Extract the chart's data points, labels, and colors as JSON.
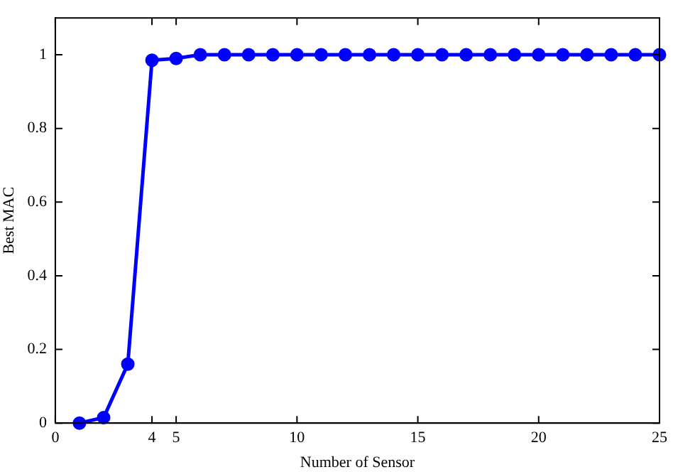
{
  "chart_data": {
    "type": "line",
    "xlabel": "Number of Sensor",
    "ylabel": "Best MAC",
    "x": [
      1,
      2,
      3,
      4,
      5,
      6,
      7,
      8,
      9,
      10,
      11,
      12,
      13,
      14,
      15,
      16,
      17,
      18,
      19,
      20,
      21,
      22,
      23,
      24,
      25
    ],
    "series": [
      {
        "color": "#0000ff",
        "values": [
          0,
          0.015,
          0.16,
          0.985,
          0.99,
          1,
          1,
          1,
          1,
          1,
          1,
          1,
          1,
          1,
          1,
          1,
          1,
          1,
          1,
          1,
          1,
          1,
          1,
          1,
          1
        ]
      }
    ],
    "xlim": [
      0,
      25
    ],
    "xticks": [
      0,
      4,
      5,
      10,
      15,
      20,
      25
    ],
    "ylim": [
      0,
      1.1
    ],
    "yticks": [
      0,
      0.2,
      0.4,
      0.6,
      0.8,
      1
    ],
    "grid": false,
    "legend": false,
    "marker": "circle",
    "line_style": "solid"
  }
}
